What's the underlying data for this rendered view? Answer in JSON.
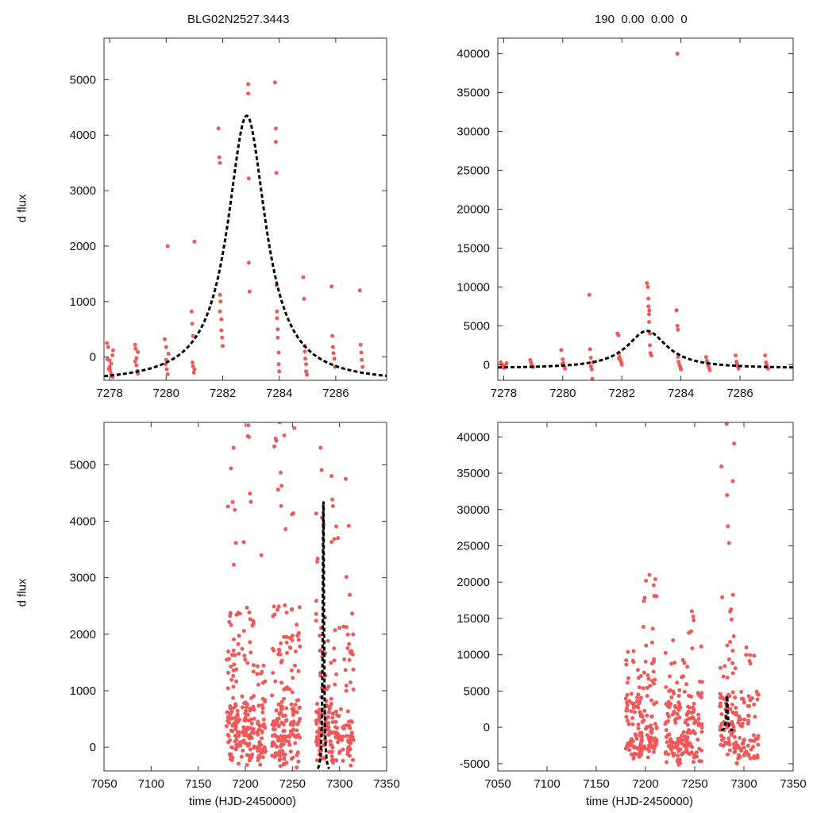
{
  "figure": {
    "title_left": "BLG02N2527.3443",
    "title_right": "190  0.00  0.00  0",
    "ylabel": "d flux",
    "xlabel": "time (HJD-2450000)"
  },
  "colors": {
    "points": "#ee5a5a",
    "model": "#000000",
    "axis": "#333333"
  },
  "chart_data": [
    {
      "name": "top-left",
      "type": "scatter",
      "xlim": [
        7277.8,
        7287.8
      ],
      "ylim": [
        -420,
        5750
      ],
      "xticks": [
        7278,
        7280,
        7282,
        7284,
        7286
      ],
      "yticks": [
        0,
        1000,
        2000,
        3000,
        4000,
        5000
      ],
      "model": {
        "t0": 7282.85,
        "peak": 4350,
        "base": -470,
        "width": 0.9
      },
      "points": [
        [
          7277.9,
          250
        ],
        [
          7277.95,
          180
        ],
        [
          7278.0,
          -60
        ],
        [
          7278.0,
          -180
        ],
        [
          7278.02,
          -240
        ],
        [
          7278.05,
          -300
        ],
        [
          7278.05,
          -120
        ],
        [
          7278.1,
          30
        ],
        [
          7278.1,
          -360
        ],
        [
          7278.12,
          120
        ],
        [
          7277.92,
          -40
        ],
        [
          7277.97,
          -220
        ],
        [
          7278.9,
          220
        ],
        [
          7278.92,
          150
        ],
        [
          7278.95,
          -20
        ],
        [
          7278.95,
          -150
        ],
        [
          7278.98,
          -250
        ],
        [
          7279.0,
          -300
        ],
        [
          7279.0,
          90
        ],
        [
          7278.9,
          -80
        ],
        [
          7279.95,
          320
        ],
        [
          7280.0,
          180
        ],
        [
          7280.0,
          -50
        ],
        [
          7280.02,
          -220
        ],
        [
          7280.05,
          -310
        ],
        [
          7280.05,
          2000
        ],
        [
          7280.08,
          60
        ],
        [
          7279.97,
          -130
        ],
        [
          7280.9,
          820
        ],
        [
          7280.92,
          600
        ],
        [
          7280.95,
          380
        ],
        [
          7280.95,
          -170
        ],
        [
          7280.98,
          -280
        ],
        [
          7281.0,
          2080
        ],
        [
          7281.0,
          -220
        ],
        [
          7280.93,
          -100
        ],
        [
          7281.85,
          4120
        ],
        [
          7281.88,
          3600
        ],
        [
          7281.9,
          3500
        ],
        [
          7281.9,
          1120
        ],
        [
          7281.92,
          1000
        ],
        [
          7281.95,
          680
        ],
        [
          7281.95,
          480
        ],
        [
          7281.98,
          350
        ],
        [
          7282.0,
          200
        ],
        [
          7281.9,
          820
        ],
        [
          7282.9,
          4920
        ],
        [
          7282.9,
          4750
        ],
        [
          7282.92,
          3220
        ],
        [
          7282.92,
          1700
        ],
        [
          7282.95,
          1180
        ],
        [
          7283.85,
          4950
        ],
        [
          7283.88,
          4120
        ],
        [
          7283.88,
          3880
        ],
        [
          7283.9,
          3320
        ],
        [
          7283.9,
          1300
        ],
        [
          7283.92,
          820
        ],
        [
          7283.92,
          700
        ],
        [
          7283.95,
          500
        ],
        [
          7283.95,
          350
        ],
        [
          7283.98,
          80
        ],
        [
          7283.98,
          -130
        ],
        [
          7284.0,
          -260
        ],
        [
          7284.85,
          1440
        ],
        [
          7284.88,
          1050
        ],
        [
          7284.9,
          200
        ],
        [
          7284.9,
          100
        ],
        [
          7284.92,
          -30
        ],
        [
          7284.95,
          -130
        ],
        [
          7284.95,
          -260
        ],
        [
          7284.98,
          -320
        ],
        [
          7285.85,
          1270
        ],
        [
          7285.88,
          380
        ],
        [
          7285.9,
          180
        ],
        [
          7285.92,
          70
        ],
        [
          7285.95,
          -30
        ],
        [
          7285.97,
          -180
        ],
        [
          7286.85,
          1200
        ],
        [
          7286.88,
          220
        ],
        [
          7286.9,
          80
        ],
        [
          7286.92,
          -50
        ],
        [
          7286.95,
          -180
        ]
      ]
    },
    {
      "name": "top-right",
      "type": "scatter",
      "xlim": [
        7277.8,
        7287.8
      ],
      "ylim": [
        -2000,
        42000
      ],
      "xticks": [
        7278,
        7280,
        7282,
        7284,
        7286
      ],
      "yticks": [
        0,
        5000,
        10000,
        15000,
        20000,
        25000,
        30000,
        35000,
        40000
      ],
      "model": {
        "t0": 7282.85,
        "peak": 4350,
        "base": -470,
        "width": 0.9
      },
      "points": [
        [
          7277.9,
          300
        ],
        [
          7277.92,
          100
        ],
        [
          7277.95,
          -200
        ],
        [
          7278.0,
          -400
        ],
        [
          7278.02,
          -300
        ],
        [
          7278.05,
          -100
        ],
        [
          7278.1,
          200
        ],
        [
          7277.97,
          -50
        ],
        [
          7278.9,
          600
        ],
        [
          7278.92,
          300
        ],
        [
          7278.95,
          -100
        ],
        [
          7279.0,
          -300
        ],
        [
          7278.98,
          -200
        ],
        [
          7279.95,
          1900
        ],
        [
          7280.0,
          700
        ],
        [
          7280.02,
          200
        ],
        [
          7280.05,
          -300
        ],
        [
          7280.08,
          -500
        ],
        [
          7279.98,
          100
        ],
        [
          7280.9,
          9000
        ],
        [
          7280.92,
          2000
        ],
        [
          7280.95,
          900
        ],
        [
          7280.95,
          -200
        ],
        [
          7280.98,
          -600
        ],
        [
          7281.0,
          -1800
        ],
        [
          7281.02,
          300
        ],
        [
          7281.85,
          4000
        ],
        [
          7281.88,
          3800
        ],
        [
          7281.9,
          1500
        ],
        [
          7281.92,
          1000
        ],
        [
          7281.95,
          600
        ],
        [
          7281.98,
          300
        ],
        [
          7282.0,
          0
        ],
        [
          7281.9,
          800
        ],
        [
          7282.85,
          10500
        ],
        [
          7282.88,
          10000
        ],
        [
          7282.9,
          8500
        ],
        [
          7282.9,
          7500
        ],
        [
          7282.92,
          6500
        ],
        [
          7282.92,
          5500
        ],
        [
          7282.95,
          4000
        ],
        [
          7282.95,
          2500
        ],
        [
          7282.97,
          1500
        ],
        [
          7283.0,
          1200
        ],
        [
          7282.93,
          7000
        ],
        [
          7283.85,
          7000
        ],
        [
          7283.88,
          5000
        ],
        [
          7283.9,
          4500
        ],
        [
          7283.9,
          1000
        ],
        [
          7283.92,
          400
        ],
        [
          7283.95,
          0
        ],
        [
          7283.98,
          -300
        ],
        [
          7284.0,
          -600
        ],
        [
          7283.88,
          40000
        ],
        [
          7284.85,
          1000
        ],
        [
          7284.88,
          500
        ],
        [
          7284.9,
          200
        ],
        [
          7284.92,
          -100
        ],
        [
          7284.95,
          -400
        ],
        [
          7284.98,
          -700
        ],
        [
          7285.85,
          1200
        ],
        [
          7285.88,
          400
        ],
        [
          7285.9,
          100
        ],
        [
          7285.92,
          -200
        ],
        [
          7285.95,
          -500
        ],
        [
          7286.85,
          1200
        ],
        [
          7286.88,
          300
        ],
        [
          7286.9,
          0
        ],
        [
          7286.92,
          -300
        ],
        [
          7286.95,
          -500
        ]
      ]
    },
    {
      "name": "bottom-left",
      "type": "scatter",
      "xlim": [
        7050,
        7350
      ],
      "ylim": [
        -420,
        5750
      ],
      "xticks": [
        7050,
        7100,
        7150,
        7200,
        7250,
        7300,
        7350
      ],
      "yticks": [
        0,
        1000,
        2000,
        3000,
        4000,
        5000
      ],
      "model": {
        "t0": 7282.85,
        "peak": 4350,
        "base": -470,
        "width": 0.9
      },
      "clusters": [
        {
          "x": [
            7180,
            7195
          ],
          "count": 95,
          "ymax": 5300
        },
        {
          "x": [
            7196,
            7210
          ],
          "count": 85,
          "ymax": 5700
        },
        {
          "x": [
            7212,
            7222
          ],
          "count": 55,
          "ymax": 3400
        },
        {
          "x": [
            7228,
            7245
          ],
          "count": 120,
          "ymax": 5750
        },
        {
          "x": [
            7246,
            7258
          ],
          "count": 70,
          "ymax": 5650
        },
        {
          "x": [
            7275,
            7285
          ],
          "count": 75,
          "ymax": 5300
        },
        {
          "x": [
            7285,
            7298
          ],
          "count": 65,
          "ymax": 4800
        },
        {
          "x": [
            7298,
            7315
          ],
          "count": 70,
          "ymax": 4750
        }
      ]
    },
    {
      "name": "bottom-right",
      "type": "scatter",
      "xlim": [
        7050,
        7350
      ],
      "ylim": [
        -6000,
        42000
      ],
      "xticks": [
        7050,
        7100,
        7150,
        7200,
        7250,
        7300,
        7350
      ],
      "yticks": [
        -5000,
        0,
        5000,
        10000,
        15000,
        20000,
        25000,
        30000,
        35000,
        40000
      ],
      "model": {
        "t0": 7282.85,
        "peak": 4350,
        "base": -470,
        "width": 0.9
      },
      "clusters": [
        {
          "x": [
            7180,
            7196
          ],
          "count": 90,
          "ymax": 10500
        },
        {
          "x": [
            7196,
            7212
          ],
          "count": 85,
          "ymax": 21000
        },
        {
          "x": [
            7220,
            7236
          ],
          "count": 80,
          "ymax": 12000
        },
        {
          "x": [
            7236,
            7258
          ],
          "count": 90,
          "ymax": 16000
        },
        {
          "x": [
            7275,
            7290
          ],
          "count": 80,
          "ymax": 41800
        },
        {
          "x": [
            7290,
            7315
          ],
          "count": 85,
          "ymax": 11000
        }
      ]
    }
  ]
}
